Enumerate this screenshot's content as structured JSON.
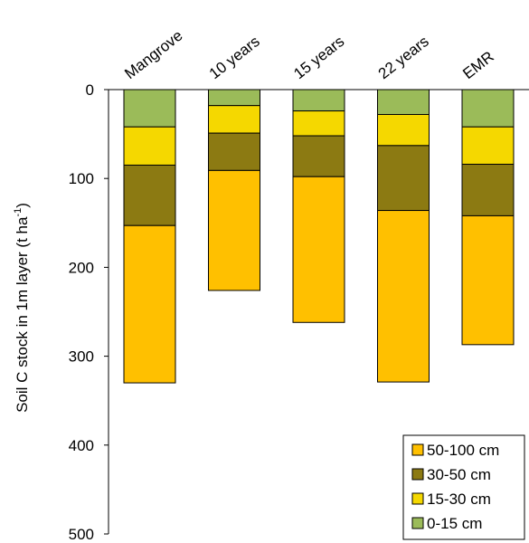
{
  "chart_data": {
    "type": "bar",
    "stacked": true,
    "y_axis_inverted": true,
    "categories": [
      "Mangrove",
      "10 years",
      "15 years",
      "22 years",
      "EMR"
    ],
    "series": [
      {
        "name": "0-15 cm",
        "color": "#9bbb59",
        "values": [
          42,
          18,
          24,
          28,
          42
        ]
      },
      {
        "name": "15-30 cm",
        "color": "#f5d800",
        "values": [
          43,
          31,
          28,
          35,
          42
        ]
      },
      {
        "name": "30-50 cm",
        "color": "#8c7a12",
        "values": [
          68,
          42,
          46,
          73,
          58
        ]
      },
      {
        "name": "50-100 cm",
        "color": "#ffc000",
        "values": [
          177,
          135,
          164,
          193,
          145
        ]
      }
    ],
    "legend_order": [
      "50-100 cm",
      "30-50 cm",
      "15-30 cm",
      "0-15 cm"
    ],
    "ylabel_main": "Soil C stock in 1m layer (t ha",
    "ylabel_sup": "-1",
    "ylabel_end": ")",
    "ylim": [
      0,
      500
    ],
    "yticks": [
      "0",
      "100",
      "200",
      "300",
      "400",
      "500"
    ],
    "grid": false,
    "legend_position": "bottom-right"
  }
}
